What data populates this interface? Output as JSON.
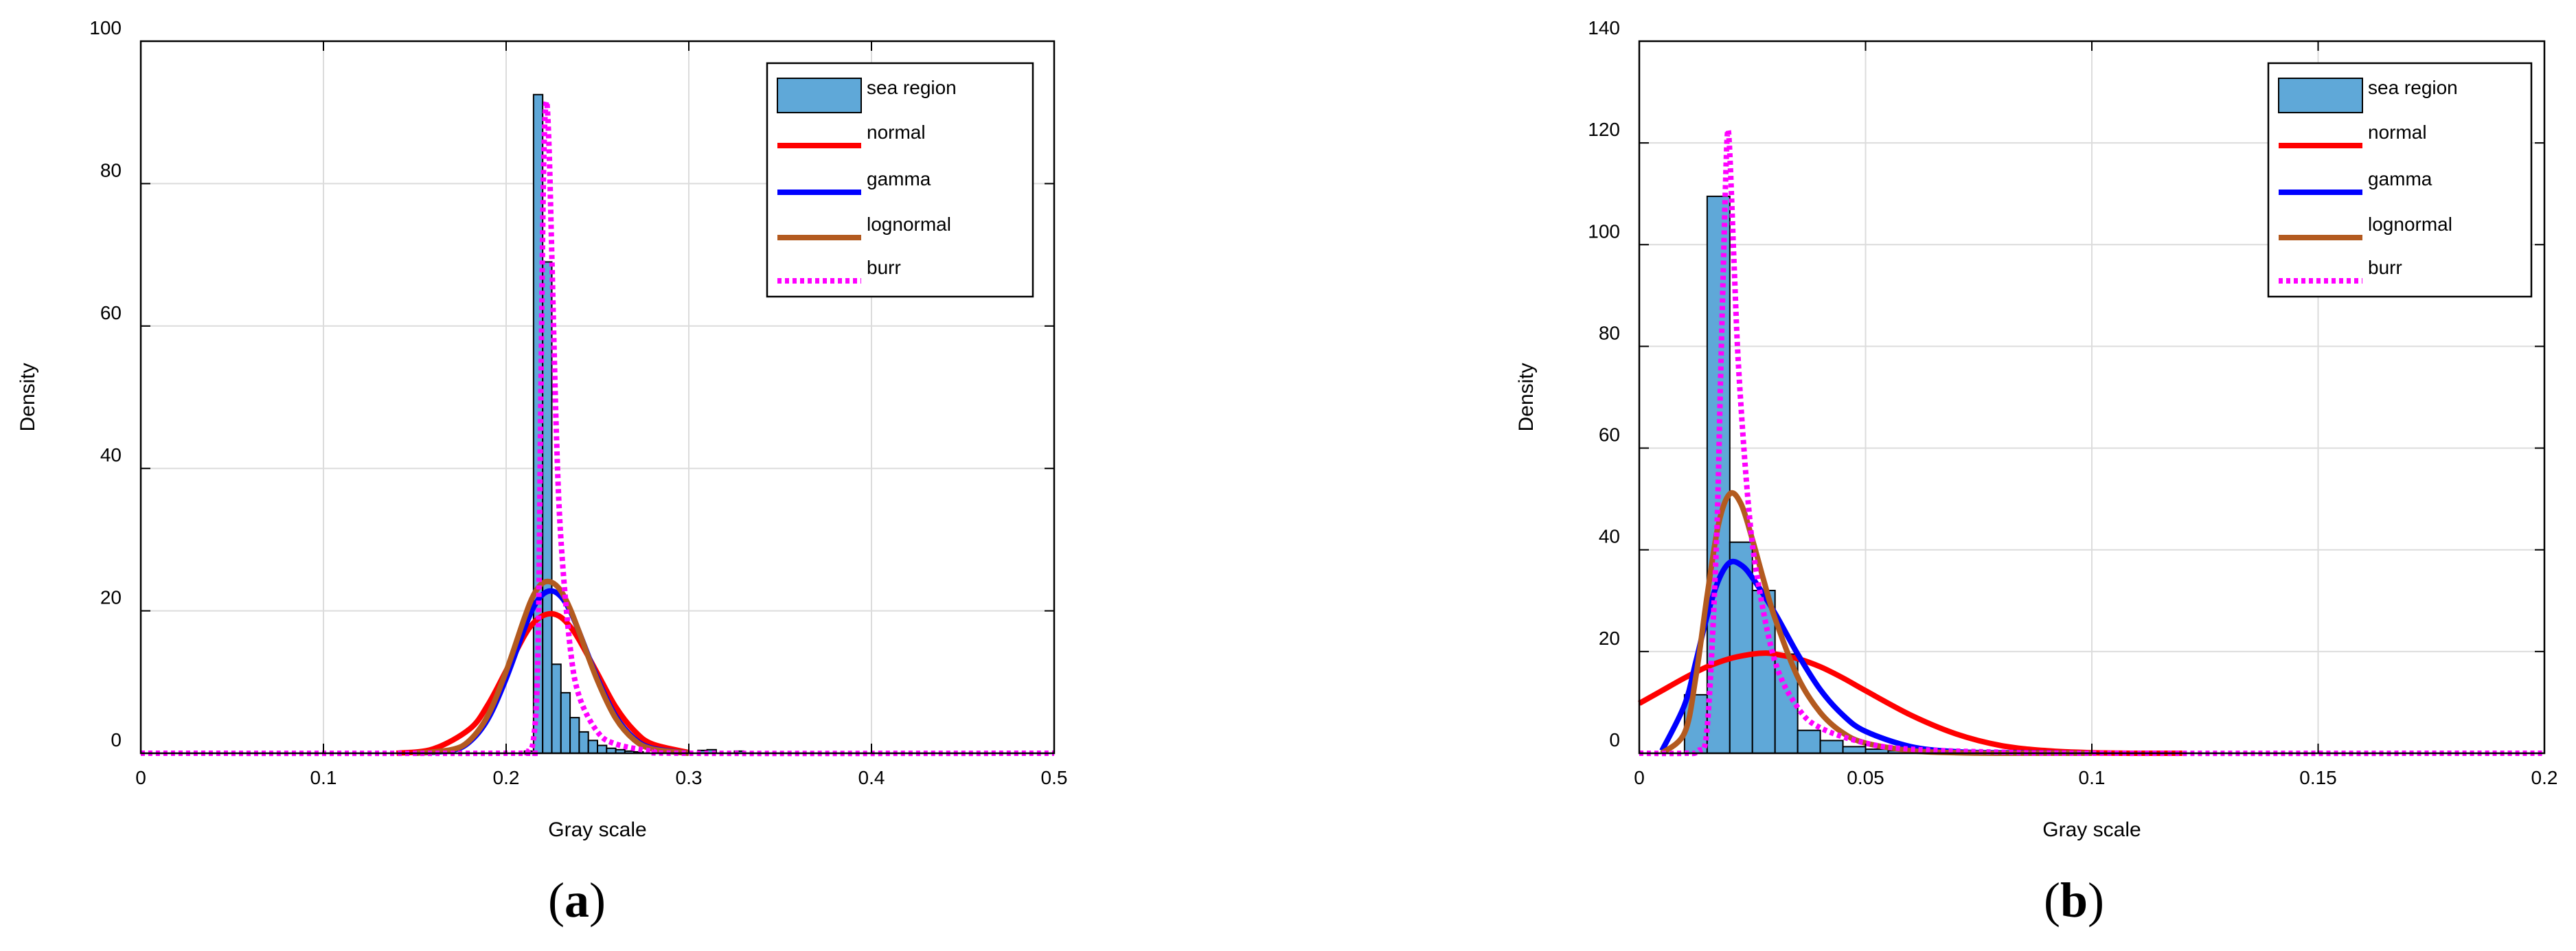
{
  "chart_data": [
    {
      "type": "histogram",
      "panel_label": "a",
      "xlabel": "Gray scale",
      "ylabel": "Density",
      "xlim": [
        0,
        0.5
      ],
      "ylim": [
        0,
        100
      ],
      "xticks": [
        0,
        0.1,
        0.2,
        0.3,
        0.4,
        0.5
      ],
      "xtick_labels": [
        "0",
        "0.1",
        "0.2",
        "0.3",
        "0.4",
        "0.5"
      ],
      "yticks": [
        0,
        20,
        40,
        60,
        80,
        100
      ],
      "ytick_labels": [
        "0",
        "20",
        "40",
        "60",
        "80",
        "100"
      ],
      "grid": true,
      "legend_position": "top-right",
      "legend": [
        "sea region",
        "normal",
        "gamma",
        "lognormal",
        "burr"
      ],
      "histogram": {
        "name": "sea region",
        "bin_width": 0.005,
        "bins": [
          {
            "x0": 0.21,
            "x1": 0.215,
            "density": 0.3
          },
          {
            "x0": 0.215,
            "x1": 0.22,
            "density": 92.5
          },
          {
            "x0": 0.22,
            "x1": 0.225,
            "density": 69.0
          },
          {
            "x0": 0.225,
            "x1": 0.23,
            "density": 12.5
          },
          {
            "x0": 0.23,
            "x1": 0.235,
            "density": 8.5
          },
          {
            "x0": 0.235,
            "x1": 0.24,
            "density": 5.0
          },
          {
            "x0": 0.24,
            "x1": 0.245,
            "density": 3.0
          },
          {
            "x0": 0.245,
            "x1": 0.25,
            "density": 1.8
          },
          {
            "x0": 0.25,
            "x1": 0.255,
            "density": 1.1
          },
          {
            "x0": 0.255,
            "x1": 0.26,
            "density": 0.7
          },
          {
            "x0": 0.26,
            "x1": 0.265,
            "density": 0.5
          },
          {
            "x0": 0.265,
            "x1": 0.27,
            "density": 0.3
          },
          {
            "x0": 0.27,
            "x1": 0.275,
            "density": 0.2
          },
          {
            "x0": 0.305,
            "x1": 0.31,
            "density": 0.4
          },
          {
            "x0": 0.31,
            "x1": 0.315,
            "density": 0.5
          },
          {
            "x0": 0.325,
            "x1": 0.33,
            "density": 0.3
          }
        ]
      },
      "series": [
        {
          "name": "normal",
          "color": "#ff0000",
          "style": "solid",
          "x": [
            0.14,
            0.16,
            0.18,
            0.19,
            0.2,
            0.21,
            0.215,
            0.22,
            0.225,
            0.23,
            0.235,
            0.24,
            0.25,
            0.26,
            0.27,
            0.28,
            0.3
          ],
          "y": [
            0.0,
            0.6,
            3.4,
            6.8,
            11.6,
            16.5,
            18.3,
            19.3,
            19.6,
            19.1,
            17.8,
            15.9,
            11.2,
            6.5,
            3.2,
            1.3,
            0.1
          ]
        },
        {
          "name": "gamma",
          "color": "#0000ff",
          "style": "solid",
          "x": [
            0.15,
            0.17,
            0.18,
            0.19,
            0.2,
            0.21,
            0.215,
            0.22,
            0.225,
            0.23,
            0.235,
            0.24,
            0.25,
            0.26,
            0.27,
            0.28,
            0.3
          ],
          "y": [
            0.0,
            0.4,
            1.6,
            4.8,
            10.5,
            17.5,
            20.5,
            22.3,
            22.8,
            22.0,
            20.0,
            17.0,
            10.5,
            5.2,
            2.1,
            0.7,
            0.0
          ]
        },
        {
          "name": "lognormal",
          "color": "#b35a1f",
          "style": "solid",
          "x": [
            0.15,
            0.17,
            0.18,
            0.19,
            0.2,
            0.21,
            0.215,
            0.22,
            0.225,
            0.23,
            0.235,
            0.24,
            0.25,
            0.26,
            0.27,
            0.28,
            0.3
          ],
          "y": [
            0.0,
            0.5,
            1.8,
            5.3,
            11.5,
            19.0,
            22.2,
            23.9,
            24.0,
            22.8,
            20.3,
            17.0,
            10.2,
            4.9,
            1.9,
            0.6,
            0.0
          ]
        },
        {
          "name": "burr",
          "color": "#ff00ff",
          "style": "dotted",
          "x": [
            0.0,
            0.2,
            0.21,
            0.215,
            0.2175,
            0.219,
            0.2205,
            0.222,
            0.2235,
            0.225,
            0.2275,
            0.23,
            0.235,
            0.24,
            0.25,
            0.26,
            0.28,
            0.3,
            0.5
          ],
          "y": [
            0.0,
            0.0,
            0.2,
            2.0,
            15.0,
            50.0,
            82.0,
            91.5,
            85.0,
            70.0,
            45.0,
            30.0,
            15.0,
            8.0,
            3.0,
            1.3,
            0.3,
            0.0,
            0.0
          ]
        }
      ]
    },
    {
      "type": "histogram",
      "panel_label": "b",
      "xlabel": "Gray scale",
      "ylabel": "Density",
      "xlim": [
        0,
        0.2
      ],
      "ylim": [
        0,
        140
      ],
      "xticks": [
        0,
        0.05,
        0.1,
        0.15,
        0.2
      ],
      "xtick_labels": [
        "0",
        "0.05",
        "0.1",
        "0.15",
        "0.2"
      ],
      "yticks": [
        0,
        20,
        40,
        60,
        80,
        100,
        120,
        140
      ],
      "ytick_labels": [
        "0",
        "20",
        "40",
        "60",
        "80",
        "100",
        "120",
        "140"
      ],
      "grid": true,
      "legend_position": "top-right",
      "legend": [
        "sea region",
        "normal",
        "gamma",
        "lognormal",
        "burr"
      ],
      "histogram": {
        "name": "sea region",
        "bin_width": 0.005,
        "bins": [
          {
            "x0": 0.01,
            "x1": 0.015,
            "density": 11.5
          },
          {
            "x0": 0.015,
            "x1": 0.02,
            "density": 109.5
          },
          {
            "x0": 0.02,
            "x1": 0.025,
            "density": 41.5
          },
          {
            "x0": 0.025,
            "x1": 0.03,
            "density": 32.0
          },
          {
            "x0": 0.03,
            "x1": 0.035,
            "density": 19.5
          },
          {
            "x0": 0.035,
            "x1": 0.04,
            "density": 4.5
          },
          {
            "x0": 0.04,
            "x1": 0.045,
            "density": 2.5
          },
          {
            "x0": 0.045,
            "x1": 0.05,
            "density": 1.3
          },
          {
            "x0": 0.05,
            "x1": 0.055,
            "density": 0.8
          },
          {
            "x0": 0.055,
            "x1": 0.06,
            "density": 0.5
          },
          {
            "x0": 0.06,
            "x1": 0.065,
            "density": 0.3
          },
          {
            "x0": 0.065,
            "x1": 0.07,
            "density": 0.2
          }
        ]
      },
      "series": [
        {
          "name": "normal",
          "color": "#ff0000",
          "style": "solid",
          "x": [
            0.0,
            0.005,
            0.01,
            0.015,
            0.02,
            0.025,
            0.028,
            0.03,
            0.035,
            0.04,
            0.045,
            0.05,
            0.06,
            0.07,
            0.08,
            0.09,
            0.1,
            0.11,
            0.12
          ],
          "y": [
            9.8,
            12.3,
            14.8,
            17.0,
            18.6,
            19.5,
            19.7,
            19.5,
            18.6,
            17.0,
            14.8,
            12.3,
            7.5,
            3.8,
            1.5,
            0.5,
            0.1,
            0.0,
            0.0
          ]
        },
        {
          "name": "gamma",
          "color": "#0000ff",
          "style": "solid",
          "x": [
            0.005,
            0.01,
            0.0125,
            0.015,
            0.0175,
            0.02,
            0.0225,
            0.025,
            0.03,
            0.035,
            0.04,
            0.045,
            0.05,
            0.06,
            0.07,
            0.08,
            0.1
          ],
          "y": [
            0.5,
            9.5,
            18.0,
            27.0,
            34.0,
            37.5,
            37.0,
            34.5,
            27.5,
            19.5,
            12.5,
            7.5,
            4.3,
            1.3,
            0.3,
            0.1,
            0.0
          ]
        },
        {
          "name": "lognormal",
          "color": "#b35a1f",
          "style": "solid",
          "x": [
            0.005,
            0.01,
            0.0125,
            0.015,
            0.0175,
            0.02,
            0.0225,
            0.025,
            0.0275,
            0.03,
            0.035,
            0.04,
            0.045,
            0.05,
            0.06,
            0.07,
            0.08,
            0.1
          ],
          "y": [
            0.0,
            4.0,
            15.0,
            31.0,
            45.0,
            51.0,
            49.0,
            42.0,
            34.0,
            26.5,
            15.0,
            8.0,
            4.0,
            2.0,
            0.5,
            0.1,
            0.0,
            0.0
          ]
        },
        {
          "name": "burr",
          "color": "#ff00ff",
          "style": "dotted",
          "x": [
            0.0,
            0.01,
            0.013,
            0.015,
            0.017,
            0.018,
            0.019,
            0.0195,
            0.02,
            0.021,
            0.022,
            0.024,
            0.026,
            0.03,
            0.035,
            0.04,
            0.05,
            0.06,
            0.08,
            0.1,
            0.2
          ],
          "y": [
            0.0,
            0.0,
            0.5,
            5.0,
            40.0,
            75.0,
            110.0,
            122.0,
            118.0,
            95.0,
            75.0,
            50.0,
            35.0,
            18.0,
            9.0,
            5.0,
            2.0,
            0.8,
            0.2,
            0.0,
            0.0
          ]
        }
      ]
    }
  ]
}
